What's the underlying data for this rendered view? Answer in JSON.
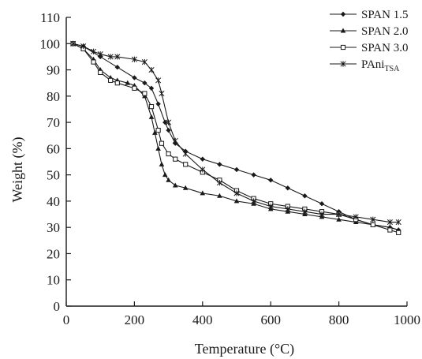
{
  "chart_data": {
    "type": "line",
    "title": "",
    "xlabel": "Temperature (°C)",
    "ylabel": "Weight (%)",
    "xlim": [
      0,
      1000
    ],
    "ylim": [
      0,
      110
    ],
    "xticks": [
      0,
      200,
      400,
      600,
      800,
      1000
    ],
    "yticks": [
      0,
      10,
      20,
      30,
      40,
      50,
      60,
      70,
      80,
      90,
      100,
      110
    ],
    "grid": false,
    "legend_position": "top-right",
    "series": [
      {
        "name": "SPAN 1.5",
        "marker": "diamond",
        "x": [
          20,
          50,
          100,
          150,
          200,
          230,
          250,
          270,
          290,
          300,
          320,
          350,
          400,
          450,
          500,
          550,
          600,
          650,
          700,
          750,
          800,
          850,
          900,
          950,
          975
        ],
        "y": [
          100,
          99,
          95,
          91,
          87,
          85,
          83,
          77,
          70,
          67,
          62,
          59,
          56,
          54,
          52,
          50,
          48,
          45,
          42,
          39,
          36,
          33,
          31,
          30,
          29
        ]
      },
      {
        "name": "SPAN 2.0",
        "marker": "triangle",
        "x": [
          20,
          50,
          80,
          100,
          130,
          150,
          180,
          200,
          230,
          250,
          260,
          270,
          280,
          290,
          300,
          320,
          350,
          400,
          450,
          500,
          550,
          600,
          650,
          700,
          750,
          800,
          850,
          900,
          950,
          975
        ],
        "y": [
          100,
          98,
          94,
          90,
          87,
          86,
          85,
          84,
          80,
          72,
          66,
          60,
          54,
          50,
          48,
          46,
          45,
          43,
          42,
          40,
          39,
          37,
          36,
          35,
          34,
          33,
          32,
          31,
          30,
          29
        ]
      },
      {
        "name": "SPAN 3.0",
        "marker": "square",
        "x": [
          20,
          50,
          80,
          100,
          130,
          150,
          200,
          230,
          250,
          270,
          280,
          300,
          320,
          350,
          400,
          450,
          500,
          550,
          600,
          650,
          700,
          750,
          800,
          850,
          900,
          950,
          975
        ],
        "y": [
          100,
          98,
          93,
          89,
          86,
          85,
          83,
          81,
          76,
          67,
          62,
          58,
          56,
          54,
          51,
          48,
          44,
          41,
          39,
          38,
          37,
          36,
          35,
          33,
          31,
          29,
          28
        ]
      },
      {
        "name": "PAni",
        "name_subscript": "TSA",
        "marker": "star",
        "x": [
          20,
          50,
          80,
          100,
          130,
          150,
          200,
          230,
          250,
          270,
          280,
          300,
          320,
          350,
          400,
          450,
          500,
          550,
          600,
          650,
          700,
          750,
          800,
          850,
          900,
          950,
          975
        ],
        "y": [
          100,
          99,
          97,
          96,
          95,
          95,
          94,
          93,
          90,
          86,
          81,
          70,
          63,
          58,
          52,
          47,
          43,
          40,
          38,
          37,
          36,
          35,
          35,
          34,
          33,
          32,
          32
        ]
      }
    ]
  }
}
